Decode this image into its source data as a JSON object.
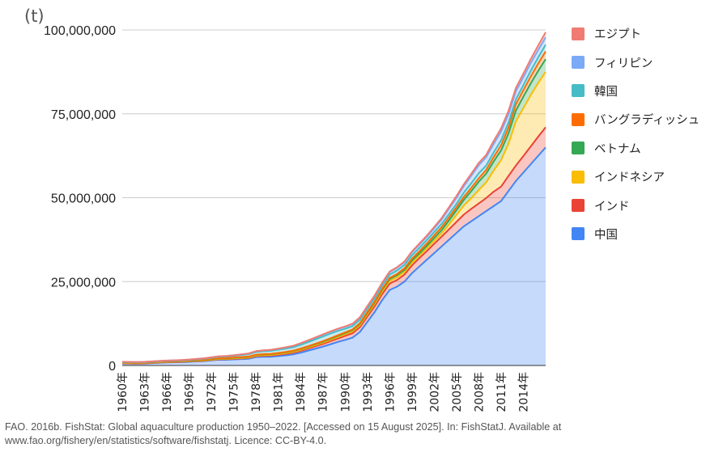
{
  "unit_label": "(t)",
  "source_text": "FAO. 2016b. FishStat: Global aquaculture production 1950–2022. [Accessed on 15 August 2025]. In: FishStatJ. Available at www.fao.org/fishery/en/statistics/software/fishstatj. Licence: CC-BY-4.0.",
  "chart_data": {
    "type": "area",
    "stacked": true,
    "title": "",
    "xlabel": "",
    "ylabel": "(t)",
    "ylim": [
      0,
      100000000
    ],
    "yticks": [
      0,
      25000000,
      50000000,
      75000000,
      100000000
    ],
    "ytick_labels": [
      "0",
      "25,000,000",
      "50,000,000",
      "75,000,000",
      "100,000,000"
    ],
    "xtick_labels": [
      "1960年",
      "1963年",
      "1966年",
      "1969年",
      "1972年",
      "1975年",
      "1978年",
      "1981年",
      "1984年",
      "1987年",
      "1990年",
      "1993年",
      "1996年",
      "1999年",
      "2002年",
      "2005年",
      "2008年",
      "2011年",
      "2014年"
    ],
    "grid": true,
    "legend_position": "right",
    "x": [
      1960,
      1961,
      1962,
      1963,
      1964,
      1965,
      1966,
      1967,
      1968,
      1969,
      1970,
      1971,
      1972,
      1973,
      1974,
      1975,
      1976,
      1977,
      1978,
      1979,
      1980,
      1981,
      1982,
      1983,
      1984,
      1985,
      1986,
      1987,
      1988,
      1989,
      1990,
      1991,
      1992,
      1993,
      1994,
      1995,
      1996,
      1997,
      1998,
      1999,
      2000,
      2001,
      2002,
      2003,
      2004,
      2005,
      2006,
      2007,
      2008,
      2009,
      2010,
      2011,
      2012,
      2013,
      2014,
      2015,
      2016,
      2017
    ],
    "series": [
      {
        "name": "中国",
        "color": "#4285f4",
        "values": [
          600000,
          550000,
          520000,
          580000,
          700000,
          800000,
          900000,
          950000,
          1000000,
          1100000,
          1200000,
          1300000,
          1500000,
          1700000,
          1700000,
          1800000,
          1900000,
          2000000,
          2500000,
          2600000,
          2600000,
          2800000,
          3000000,
          3300000,
          3800000,
          4400000,
          5000000,
          5600000,
          6300000,
          7000000,
          7600000,
          8300000,
          10000000,
          13000000,
          16000000,
          19500000,
          22500000,
          23500000,
          25000000,
          27500000,
          29500000,
          31500000,
          33500000,
          35500000,
          37500000,
          39500000,
          41500000,
          43000000,
          44500000,
          46000000,
          47500000,
          49000000,
          52000000,
          55000000,
          57500000,
          60000000,
          62500000,
          65000000
        ]
      },
      {
        "name": "インド",
        "color": "#ea4335",
        "values": [
          50000,
          50000,
          50000,
          60000,
          60000,
          70000,
          70000,
          80000,
          80000,
          90000,
          100000,
          110000,
          130000,
          150000,
          170000,
          190000,
          210000,
          230000,
          260000,
          300000,
          340000,
          380000,
          430000,
          480000,
          540000,
          600000,
          700000,
          800000,
          900000,
          1000000,
          1200000,
          1300000,
          1400000,
          1600000,
          1700000,
          1800000,
          1900000,
          2000000,
          2100000,
          2300000,
          2500000,
          2600000,
          2800000,
          2900000,
          3100000,
          3300000,
          3500000,
          3700000,
          3800000,
          3900000,
          4300000,
          4300000,
          4500000,
          4600000,
          4900000,
          5300000,
          5700000,
          6000000
        ]
      },
      {
        "name": "インドネシア",
        "color": "#fbbc04",
        "values": [
          100000,
          100000,
          100000,
          100000,
          100000,
          100000,
          100000,
          100000,
          100000,
          100000,
          100000,
          100000,
          100000,
          100000,
          110000,
          120000,
          130000,
          150000,
          160000,
          180000,
          200000,
          220000,
          250000,
          270000,
          300000,
          320000,
          350000,
          380000,
          400000,
          450000,
          500000,
          550000,
          600000,
          650000,
          700000,
          750000,
          800000,
          800000,
          750000,
          800000,
          800000,
          860000,
          910000,
          1000000,
          1450000,
          2100000,
          2700000,
          3200000,
          4000000,
          4700000,
          6300000,
          7900000,
          9600000,
          13200000,
          14300000,
          15300000,
          16000000,
          16500000
        ]
      },
      {
        "name": "ベトナム",
        "color": "#34a853",
        "values": [
          100000,
          100000,
          100000,
          100000,
          100000,
          100000,
          100000,
          100000,
          100000,
          110000,
          120000,
          130000,
          140000,
          150000,
          160000,
          170000,
          180000,
          190000,
          200000,
          210000,
          220000,
          230000,
          240000,
          250000,
          260000,
          270000,
          280000,
          300000,
          320000,
          340000,
          360000,
          380000,
          400000,
          420000,
          450000,
          500000,
          550000,
          600000,
          650000,
          700000,
          600000,
          700000,
          800000,
          950000,
          1200000,
          1400000,
          1700000,
          2100000,
          2500000,
          2600000,
          2700000,
          2900000,
          3100000,
          3200000,
          3400000,
          3500000,
          3600000,
          3800000
        ]
      },
      {
        "name": "バングラディッシュ",
        "color": "#ff6d01",
        "values": [
          50000,
          50000,
          50000,
          50000,
          50000,
          60000,
          60000,
          60000,
          60000,
          70000,
          70000,
          70000,
          80000,
          80000,
          80000,
          90000,
          90000,
          100000,
          100000,
          100000,
          110000,
          110000,
          120000,
          120000,
          130000,
          140000,
          150000,
          160000,
          180000,
          200000,
          200000,
          210000,
          250000,
          290000,
          300000,
          320000,
          350000,
          400000,
          480000,
          550000,
          650000,
          700000,
          800000,
          860000,
          900000,
          880000,
          890000,
          950000,
          1000000,
          1100000,
          1300000,
          1500000,
          1700000,
          1860000,
          1960000,
          2060000,
          2200000,
          2300000
        ]
      },
      {
        "name": "韓国",
        "color": "#46bdc6",
        "values": [
          100000,
          100000,
          100000,
          100000,
          110000,
          120000,
          130000,
          150000,
          180000,
          200000,
          250000,
          300000,
          350000,
          400000,
          450000,
          500000,
          600000,
          700000,
          800000,
          850000,
          900000,
          950000,
          1000000,
          1000000,
          1100000,
          1200000,
          1300000,
          1400000,
          1400000,
          1300000,
          1100000,
          1000000,
          1000000,
          1000000,
          1000000,
          1000000,
          1000000,
          1000000,
          1000000,
          1000000,
          1000000,
          1000000,
          1000000,
          1000000,
          1000000,
          1000000,
          1300000,
          1400000,
          1500000,
          1300000,
          1400000,
          1500000,
          1500000,
          1500000,
          1500000,
          1700000,
          1800000,
          2000000
        ]
      },
      {
        "name": "フィリピン",
        "color": "#7baaf7",
        "values": [
          100000,
          100000,
          100000,
          100000,
          100000,
          100000,
          100000,
          100000,
          100000,
          100000,
          110000,
          120000,
          130000,
          140000,
          150000,
          160000,
          180000,
          200000,
          220000,
          240000,
          260000,
          300000,
          350000,
          400000,
          450000,
          500000,
          520000,
          540000,
          560000,
          580000,
          600000,
          620000,
          640000,
          660000,
          680000,
          700000,
          750000,
          800000,
          850000,
          900000,
          950000,
          1000000,
          1100000,
          1300000,
          1600000,
          1800000,
          1900000,
          2200000,
          2400000,
          2500000,
          2500000,
          2600000,
          2500000,
          2400000,
          2300000,
          2300000,
          2200000,
          2200000
        ]
      },
      {
        "name": "エジプト",
        "color": "#f07b72",
        "values": [
          10000,
          10000,
          10000,
          10000,
          10000,
          10000,
          10000,
          10000,
          10000,
          10000,
          10000,
          10000,
          20000,
          20000,
          20000,
          20000,
          20000,
          20000,
          30000,
          30000,
          30000,
          40000,
          40000,
          50000,
          50000,
          60000,
          60000,
          70000,
          70000,
          80000,
          80000,
          90000,
          100000,
          100000,
          120000,
          140000,
          150000,
          190000,
          200000,
          230000,
          340000,
          340000,
          380000,
          440000,
          470000,
          540000,
          590000,
          640000,
          690000,
          700000,
          900000,
          990000,
          1000000,
          1000000,
          1130000,
          1170000,
          1370000,
          1500000
        ]
      }
    ]
  }
}
